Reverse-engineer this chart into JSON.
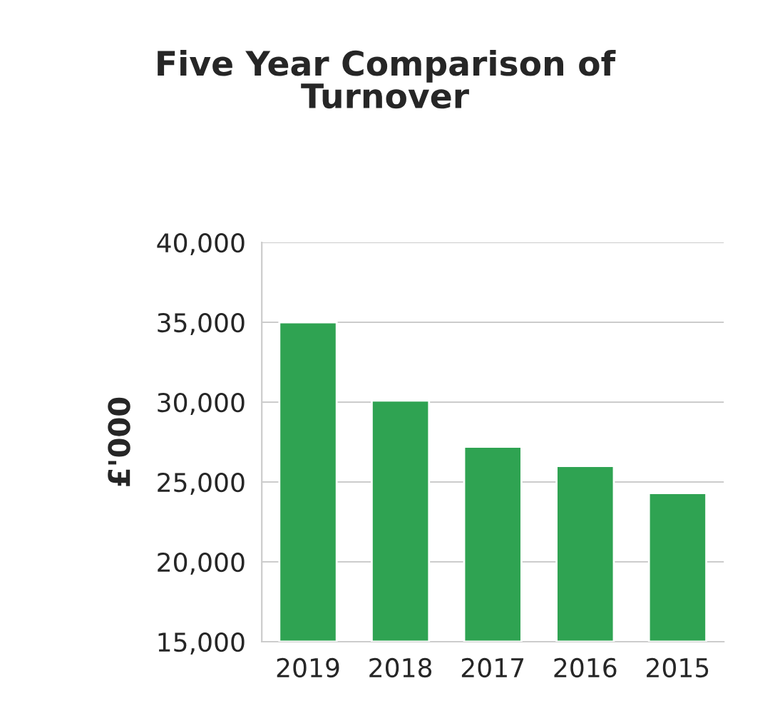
{
  "chart_data": {
    "type": "bar",
    "title": "Five Year Comparison of\nTurnover",
    "ylabel": "£'000",
    "categories": [
      "2019",
      "2018",
      "2017",
      "2016",
      "2015"
    ],
    "values": [
      35000,
      30100,
      27200,
      26000,
      24300
    ],
    "color": "#2fa352",
    "ylim": [
      15000,
      40000
    ],
    "yticks": [
      {
        "value": 15000,
        "label": "15,000"
      },
      {
        "value": 20000,
        "label": "20,000"
      },
      {
        "value": 25000,
        "label": "25,000"
      },
      {
        "value": 30000,
        "label": "30,000"
      },
      {
        "value": 35000,
        "label": "35,000"
      },
      {
        "value": 40000,
        "label": "40,000"
      }
    ],
    "grid": "y"
  }
}
